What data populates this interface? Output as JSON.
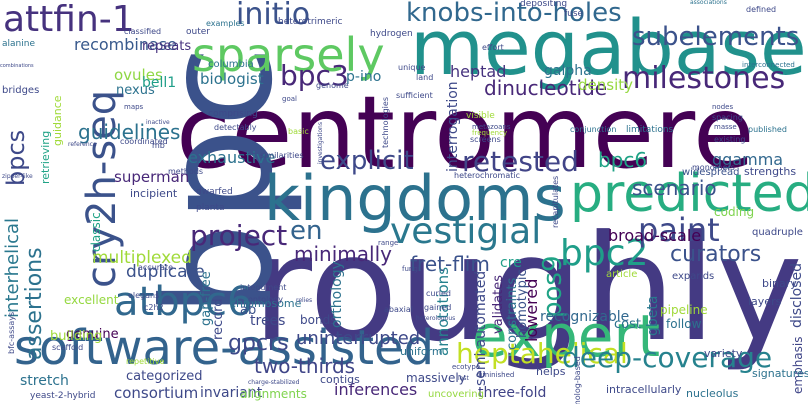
{
  "words": [
    {
      "text": "roughly",
      "color": "#443a83",
      "orient": "h"
    },
    {
      "text": "centromere",
      "color": "#440154",
      "orient": "h"
    },
    {
      "text": "bpc",
      "color": "#3b528b",
      "orient": "v"
    },
    {
      "text": "megabases",
      "color": "#21918c",
      "orient": "h"
    },
    {
      "text": "kingdoms",
      "color": "#2c728e",
      "orient": "h"
    },
    {
      "text": "software-assisted",
      "color": "#33638d",
      "orient": "h"
    },
    {
      "text": "predicted",
      "color": "#27ad81",
      "orient": "h"
    },
    {
      "text": "expert",
      "color": "#35b779",
      "orient": "h"
    },
    {
      "text": "sparsely",
      "color": "#5ec962",
      "orient": "h"
    },
    {
      "text": "attfin-1",
      "color": "#46327e",
      "orient": "h"
    },
    {
      "text": "cry2h-seq",
      "color": "#3b528b",
      "orient": "v"
    },
    {
      "text": "vestigial",
      "color": "#2a788e",
      "orient": "h"
    },
    {
      "text": "milestones",
      "color": "#482878",
      "orient": "h"
    },
    {
      "text": "atbpc6",
      "color": "#31688e",
      "orient": "h"
    },
    {
      "text": "knobs-into-holes",
      "color": "#31688e",
      "orient": "h"
    },
    {
      "text": "initio",
      "color": "#3b528b",
      "orient": "h"
    },
    {
      "text": "subelements",
      "color": "#3b528b",
      "orient": "h"
    },
    {
      "text": "bpc2",
      "color": "#1f9e89",
      "orient": "h"
    },
    {
      "text": "paint",
      "color": "#3e4989",
      "orient": "h"
    },
    {
      "text": "project",
      "color": "#482878",
      "orient": "h"
    },
    {
      "text": "bpc3",
      "color": "#482878",
      "orient": "h"
    },
    {
      "text": "en",
      "color": "#33638d",
      "orient": "h"
    },
    {
      "text": "retested",
      "color": "#414487",
      "orient": "h"
    },
    {
      "text": "explicit",
      "color": "#3e4989",
      "orient": "h"
    },
    {
      "text": "heptahelical",
      "color": "#c2df23",
      "orient": "h"
    },
    {
      "text": "deep-coverage",
      "color": "#26828e",
      "orient": "h"
    },
    {
      "text": "guidelines",
      "color": "#2c728e",
      "orient": "h"
    },
    {
      "text": "assertions",
      "color": "#2c728e",
      "orient": "v"
    },
    {
      "text": "bpcs",
      "color": "#3e4989",
      "orient": "v"
    },
    {
      "text": "pos9",
      "color": "#20a386",
      "orient": "v"
    },
    {
      "text": "bpc6",
      "color": "#20a386",
      "orient": "h"
    },
    {
      "text": "dinucleotide",
      "color": "#482878",
      "orient": "h"
    },
    {
      "text": "recombinase",
      "color": "#38598c",
      "orient": "h"
    },
    {
      "text": "repeats",
      "color": "#46327e",
      "orient": "h"
    },
    {
      "text": "fret-flim",
      "color": "#3b528b",
      "orient": "h"
    },
    {
      "text": "gpcrs",
      "color": "#3e4989",
      "orient": "h"
    },
    {
      "text": "interhelical",
      "color": "#2a788e",
      "orient": "v"
    },
    {
      "text": "two-thirds",
      "color": "#404688",
      "orient": "h"
    },
    {
      "text": "curators",
      "color": "#3b528b",
      "orient": "h"
    },
    {
      "text": "scenario",
      "color": "#3b528b",
      "orient": "h"
    },
    {
      "text": "minimally",
      "color": "#482878",
      "orient": "h"
    },
    {
      "text": "uninterrupted",
      "color": "#3e4989",
      "orient": "h"
    },
    {
      "text": "broad-scale",
      "color": "#440154",
      "orient": "h"
    },
    {
      "text": "consortium",
      "color": "#3e4989",
      "orient": "h"
    },
    {
      "text": "invariant",
      "color": "#3e4989",
      "orient": "h"
    },
    {
      "text": "inferences",
      "color": "#482878",
      "orient": "h"
    },
    {
      "text": "three-fold",
      "color": "#414487",
      "orient": "h"
    },
    {
      "text": "exhaustive",
      "color": "#2c728e",
      "orient": "h"
    },
    {
      "text": "multiplexed",
      "color": "#a0da39",
      "orient": "h"
    },
    {
      "text": "duplicate",
      "color": "#3b528b",
      "orient": "h"
    },
    {
      "text": "superman",
      "color": "#482878",
      "orient": "h"
    },
    {
      "text": "heptad",
      "color": "#46327e",
      "orient": "h"
    },
    {
      "text": "galpha",
      "color": "#2c728e",
      "orient": "h"
    },
    {
      "text": "density",
      "color": "#95d840",
      "orient": "h"
    },
    {
      "text": "ggamma",
      "color": "#31688e",
      "orient": "h"
    },
    {
      "text": "annotations",
      "color": "#26828e",
      "orient": "v"
    },
    {
      "text": "interrogation",
      "color": "#3e4989",
      "orient": "v"
    },
    {
      "text": "ovules",
      "color": "#8fd744",
      "orient": "h"
    },
    {
      "text": "bell1",
      "color": "#1f9e89",
      "orient": "h"
    },
    {
      "text": "nexus",
      "color": "#2c728e",
      "orient": "h"
    },
    {
      "text": "biologist",
      "color": "#2c728e",
      "orient": "h"
    },
    {
      "text": "p-ino",
      "color": "#2c728e",
      "orient": "h"
    },
    {
      "text": "chromosome",
      "color": "#2c728e",
      "orient": "h"
    },
    {
      "text": "semi-automated",
      "color": "#3e4989",
      "orient": "v"
    },
    {
      "text": "validates",
      "color": "#482878",
      "orient": "v"
    },
    {
      "text": "constraints",
      "color": "#2c728e",
      "orient": "v"
    },
    {
      "text": "homotypic",
      "color": "#3b528b",
      "orient": "v"
    },
    {
      "text": "cre",
      "color": "#1f9e89",
      "orient": "h"
    },
    {
      "text": "lowered",
      "color": "#440154",
      "orient": "v"
    },
    {
      "text": "recognizable",
      "color": "#31688e",
      "orient": "h"
    },
    {
      "text": "gbeta",
      "color": "#2a788e",
      "orient": "v"
    },
    {
      "text": "cost",
      "color": "#2c728e",
      "orient": "h"
    },
    {
      "text": "disclosed",
      "color": "#3e4989",
      "orient": "v"
    },
    {
      "text": "emphasis",
      "color": "#404688",
      "orient": "v"
    },
    {
      "text": "coding",
      "color": "#7fd34e",
      "orient": "h"
    },
    {
      "text": "widespread",
      "color": "#3b528b",
      "orient": "h"
    },
    {
      "text": "strengths",
      "color": "#3e4989",
      "orient": "h"
    },
    {
      "text": "gap-free",
      "color": "#2c728e",
      "orient": "v"
    },
    {
      "text": "record",
      "color": "#3e4989",
      "orient": "v"
    },
    {
      "text": "ab",
      "color": "#3b528b",
      "orient": "h"
    },
    {
      "text": "trees",
      "color": "#3e4989",
      "orient": "h"
    },
    {
      "text": "bonds",
      "color": "#3e4989",
      "orient": "h"
    },
    {
      "text": "orthology",
      "color": "#2c728e",
      "orient": "v"
    },
    {
      "text": "genuine",
      "color": "#440154",
      "orient": "h"
    },
    {
      "text": "stretch",
      "color": "#2c728e",
      "orient": "h"
    },
    {
      "text": "categorized",
      "color": "#3e4989",
      "orient": "h"
    },
    {
      "text": "building",
      "color": "#a0da39",
      "orient": "h"
    },
    {
      "text": "excellent",
      "color": "#95d840",
      "orient": "h"
    },
    {
      "text": "classic",
      "color": "#20a386",
      "orient": "v"
    },
    {
      "text": "retrieving",
      "color": "#20a386",
      "orient": "v"
    },
    {
      "text": "guidance",
      "color": "#a0da39",
      "orient": "v"
    },
    {
      "text": "incipient",
      "color": "#3e4989",
      "orient": "h"
    },
    {
      "text": "uniform",
      "color": "#2c728e",
      "orient": "h"
    },
    {
      "text": "massively",
      "color": "#3e4989",
      "orient": "h"
    },
    {
      "text": "contigs",
      "color": "#3e4989",
      "orient": "h"
    },
    {
      "text": "alignments",
      "color": "#7fd34e",
      "orient": "h"
    },
    {
      "text": "uncovering",
      "color": "#95d840",
      "orient": "h"
    },
    {
      "text": "intracellularly",
      "color": "#3e4989",
      "orient": "h"
    },
    {
      "text": "nucleolus",
      "color": "#2c728e",
      "orient": "h"
    },
    {
      "text": "signatures",
      "color": "#2c728e",
      "orient": "h"
    },
    {
      "text": "helps",
      "color": "#3e4989",
      "orient": "h"
    },
    {
      "text": "layers",
      "color": "#3e4989",
      "orient": "h"
    },
    {
      "text": "variety",
      "color": "#3e4989",
      "orient": "h"
    },
    {
      "text": "follow",
      "color": "#2c728e",
      "orient": "h"
    },
    {
      "text": "pipeline",
      "color": "#a0da39",
      "orient": "h"
    },
    {
      "text": "binary",
      "color": "#3e4989",
      "orient": "h"
    },
    {
      "text": "quadruple",
      "color": "#3e4989",
      "orient": "h"
    },
    {
      "text": "expands",
      "color": "#3e4989",
      "orient": "h"
    },
    {
      "text": "article",
      "color": "#a0da39",
      "orient": "h"
    },
    {
      "text": "columbia",
      "color": "#2c728e",
      "orient": "h"
    },
    {
      "text": "comprising",
      "color": "#3e4989",
      "orient": "h"
    },
    {
      "text": "hydrogen",
      "color": "#3e4989",
      "orient": "h"
    },
    {
      "text": "outer",
      "color": "#3e4989",
      "orient": "h"
    },
    {
      "text": "heterotrimeric",
      "color": "#3e4989",
      "orient": "h"
    },
    {
      "text": "examples",
      "color": "#2c728e",
      "orient": "h"
    },
    {
      "text": "depositing",
      "color": "#3e4989",
      "orient": "h"
    },
    {
      "text": "effort",
      "color": "#3e4989",
      "orient": "h"
    },
    {
      "text": "fuse",
      "color": "#3e4989",
      "orient": "h"
    },
    {
      "text": "defined",
      "color": "#3e4989",
      "orient": "h"
    },
    {
      "text": "associations",
      "color": "#2c728e",
      "orient": "h"
    },
    {
      "text": "interconnected",
      "color": "#2c728e",
      "orient": "h"
    },
    {
      "text": "spacing",
      "color": "#3e4989",
      "orient": "h"
    },
    {
      "text": "nodes",
      "color": "#3e4989",
      "orient": "h"
    },
    {
      "text": "masse",
      "color": "#3e4989",
      "orient": "h"
    },
    {
      "text": "published",
      "color": "#2c728e",
      "orient": "h"
    },
    {
      "text": "existing",
      "color": "#3e4989",
      "orient": "h"
    },
    {
      "text": "limitations",
      "color": "#2c728e",
      "orient": "h"
    },
    {
      "text": "monomers",
      "color": "#3e4989",
      "orient": "h"
    },
    {
      "text": "conjunction",
      "color": "#2c728e",
      "orient": "h"
    },
    {
      "text": "screens",
      "color": "#3e4989",
      "orient": "h"
    },
    {
      "text": "visible",
      "color": "#a0da39",
      "orient": "h"
    },
    {
      "text": "metazoans",
      "color": "#3e4989",
      "orient": "h"
    },
    {
      "text": "frequency",
      "color": "#a0da39",
      "orient": "h"
    },
    {
      "text": "genome",
      "color": "#3e4989",
      "orient": "h"
    },
    {
      "text": "unique",
      "color": "#3e4989",
      "orient": "h"
    },
    {
      "text": "land",
      "color": "#3e4989",
      "orient": "h"
    },
    {
      "text": "combinations",
      "color": "#3e4989",
      "orient": "h"
    },
    {
      "text": "bridges",
      "color": "#3e4989",
      "orient": "h"
    },
    {
      "text": "alanine",
      "color": "#2c728e",
      "orient": "h"
    },
    {
      "text": "planta",
      "color": "#3e4989",
      "orient": "h"
    },
    {
      "text": "dwarfed",
      "color": "#3e4989",
      "orient": "h"
    },
    {
      "text": "methods",
      "color": "#3e4989",
      "orient": "h"
    },
    {
      "text": "similarities",
      "color": "#3e4989",
      "orient": "h"
    },
    {
      "text": "detectably",
      "color": "#3e4989",
      "orient": "h"
    },
    {
      "text": "basic",
      "color": "#a0da39",
      "orient": "h"
    },
    {
      "text": "heterochromatic",
      "color": "#3e4989",
      "orient": "h"
    },
    {
      "text": "coordinated",
      "color": "#3e4989",
      "orient": "h"
    },
    {
      "text": "classified",
      "color": "#3e4989",
      "orient": "h"
    },
    {
      "text": "maps",
      "color": "#3e4989",
      "orient": "h"
    },
    {
      "text": "mb",
      "color": "#3e4989",
      "orient": "h"
    },
    {
      "text": "inactive",
      "color": "#3e4989",
      "orient": "h"
    },
    {
      "text": "reference",
      "color": "#3e4989",
      "orient": "h"
    },
    {
      "text": "zipper-like",
      "color": "#3e4989",
      "orient": "h"
    },
    {
      "text": "elegans",
      "color": "#3e4989",
      "orient": "h"
    },
    {
      "text": "accurate",
      "color": "#3e4989",
      "orient": "h"
    },
    {
      "text": "c2h2",
      "color": "#3e4989",
      "orient": "h"
    },
    {
      "text": "integument",
      "color": "#3e4989",
      "orient": "h"
    },
    {
      "text": "ontology",
      "color": "#3e4989",
      "orient": "h"
    },
    {
      "text": "bfc-assays",
      "color": "#3e4989",
      "orient": "v"
    },
    {
      "text": "scaffold",
      "color": "#3e4989",
      "orient": "h"
    },
    {
      "text": "yeast-2-hybrid",
      "color": "#3e4989",
      "orient": "h"
    },
    {
      "text": "repetitive",
      "color": "#a0da39",
      "orient": "h"
    },
    {
      "text": "charge-stabilized",
      "color": "#3e4989",
      "orient": "h"
    },
    {
      "text": "abaxial",
      "color": "#3e4989",
      "orient": "h"
    },
    {
      "text": "relies",
      "color": "#3e4989",
      "orient": "h"
    },
    {
      "text": "ecotype",
      "color": "#3e4989",
      "orient": "h"
    },
    {
      "text": "lost",
      "color": "#3e4989",
      "orient": "h"
    },
    {
      "text": "curled",
      "color": "#3e4989",
      "orient": "h"
    },
    {
      "text": "gained",
      "color": "#3e4989",
      "orient": "h"
    },
    {
      "text": "homolog-based",
      "color": "#3e4989",
      "orient": "v"
    },
    {
      "text": "recapitulates",
      "color": "#3e4989",
      "orient": "v"
    },
    {
      "text": "fungi",
      "color": "#3e4989",
      "orient": "h"
    },
    {
      "text": "range",
      "color": "#3e4989",
      "orient": "h"
    },
    {
      "text": "heterologous",
      "color": "#3e4989",
      "orient": "h"
    },
    {
      "text": "diminished",
      "color": "#3e4989",
      "orient": "h"
    },
    {
      "text": "goal",
      "color": "#3e4989",
      "orient": "h"
    },
    {
      "text": "sufficient",
      "color": "#3e4989",
      "orient": "h"
    },
    {
      "text": "technologies",
      "color": "#3e4989",
      "orient": "v"
    },
    {
      "text": "investigations",
      "color": "#3e4989",
      "orient": "v"
    }
  ]
}
